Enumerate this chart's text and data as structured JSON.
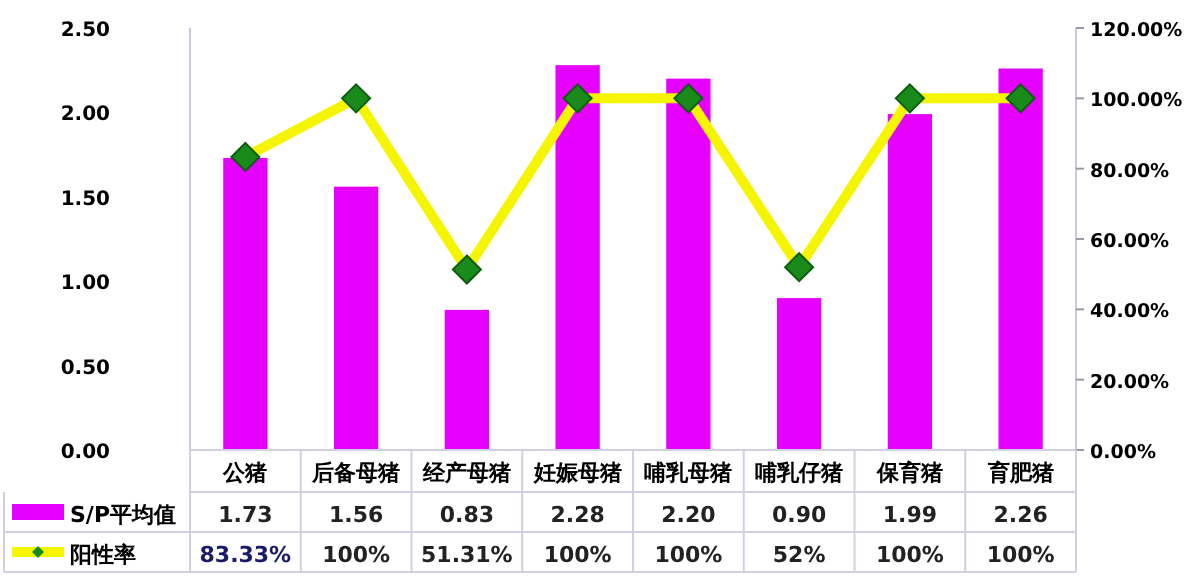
{
  "chart_data": {
    "type": "bar",
    "categories": [
      "公猪",
      "后备母猪",
      "经产母猪",
      "妊娠母猪",
      "哺乳母猪",
      "哺乳仔猪",
      "保育猪",
      "育肥猪"
    ],
    "series": [
      {
        "name": "S/P平均值",
        "color": "#e600ff",
        "values": [
          1.73,
          1.56,
          0.83,
          2.28,
          2.2,
          0.9,
          1.99,
          2.26
        ],
        "value_labels": [
          "1.73",
          "1.56",
          "0.83",
          "2.28",
          "2.20",
          "0.90",
          "1.99",
          "2.26"
        ]
      },
      {
        "name": "阳性率",
        "type": "line",
        "axis": "y2",
        "color": "#f5f500",
        "marker": "diamond",
        "values": [
          83.33,
          100,
          51.31,
          100,
          100,
          52,
          100,
          100
        ],
        "value_labels": [
          "83.33%",
          "100%",
          "51.31%",
          "100%",
          "100%",
          "52%",
          "100%",
          "100%"
        ]
      }
    ],
    "ylim": [
      0,
      2.5
    ],
    "yticks": [
      {
        "value": 0,
        "label": "0.00"
      },
      {
        "value": 0.5,
        "label": "0.50"
      },
      {
        "value": 1,
        "label": "1.00"
      },
      {
        "value": 1.5,
        "label": "1.50"
      },
      {
        "value": 2,
        "label": "2.00"
      },
      {
        "value": 2.5,
        "label": "2.50"
      }
    ],
    "y2lim": [
      0,
      120
    ],
    "y2ticks": [
      {
        "value": 0,
        "label": "0.00%"
      },
      {
        "value": 20,
        "label": "20.00%"
      },
      {
        "value": 40,
        "label": "40.00%"
      },
      {
        "value": 60,
        "label": "60.00%"
      },
      {
        "value": 80,
        "label": "80.00%"
      },
      {
        "value": 100,
        "label": "100.00%"
      },
      {
        "value": 120,
        "label": "120.00%"
      }
    ],
    "grid": false,
    "legend": "bottom",
    "line_style": "solid"
  }
}
